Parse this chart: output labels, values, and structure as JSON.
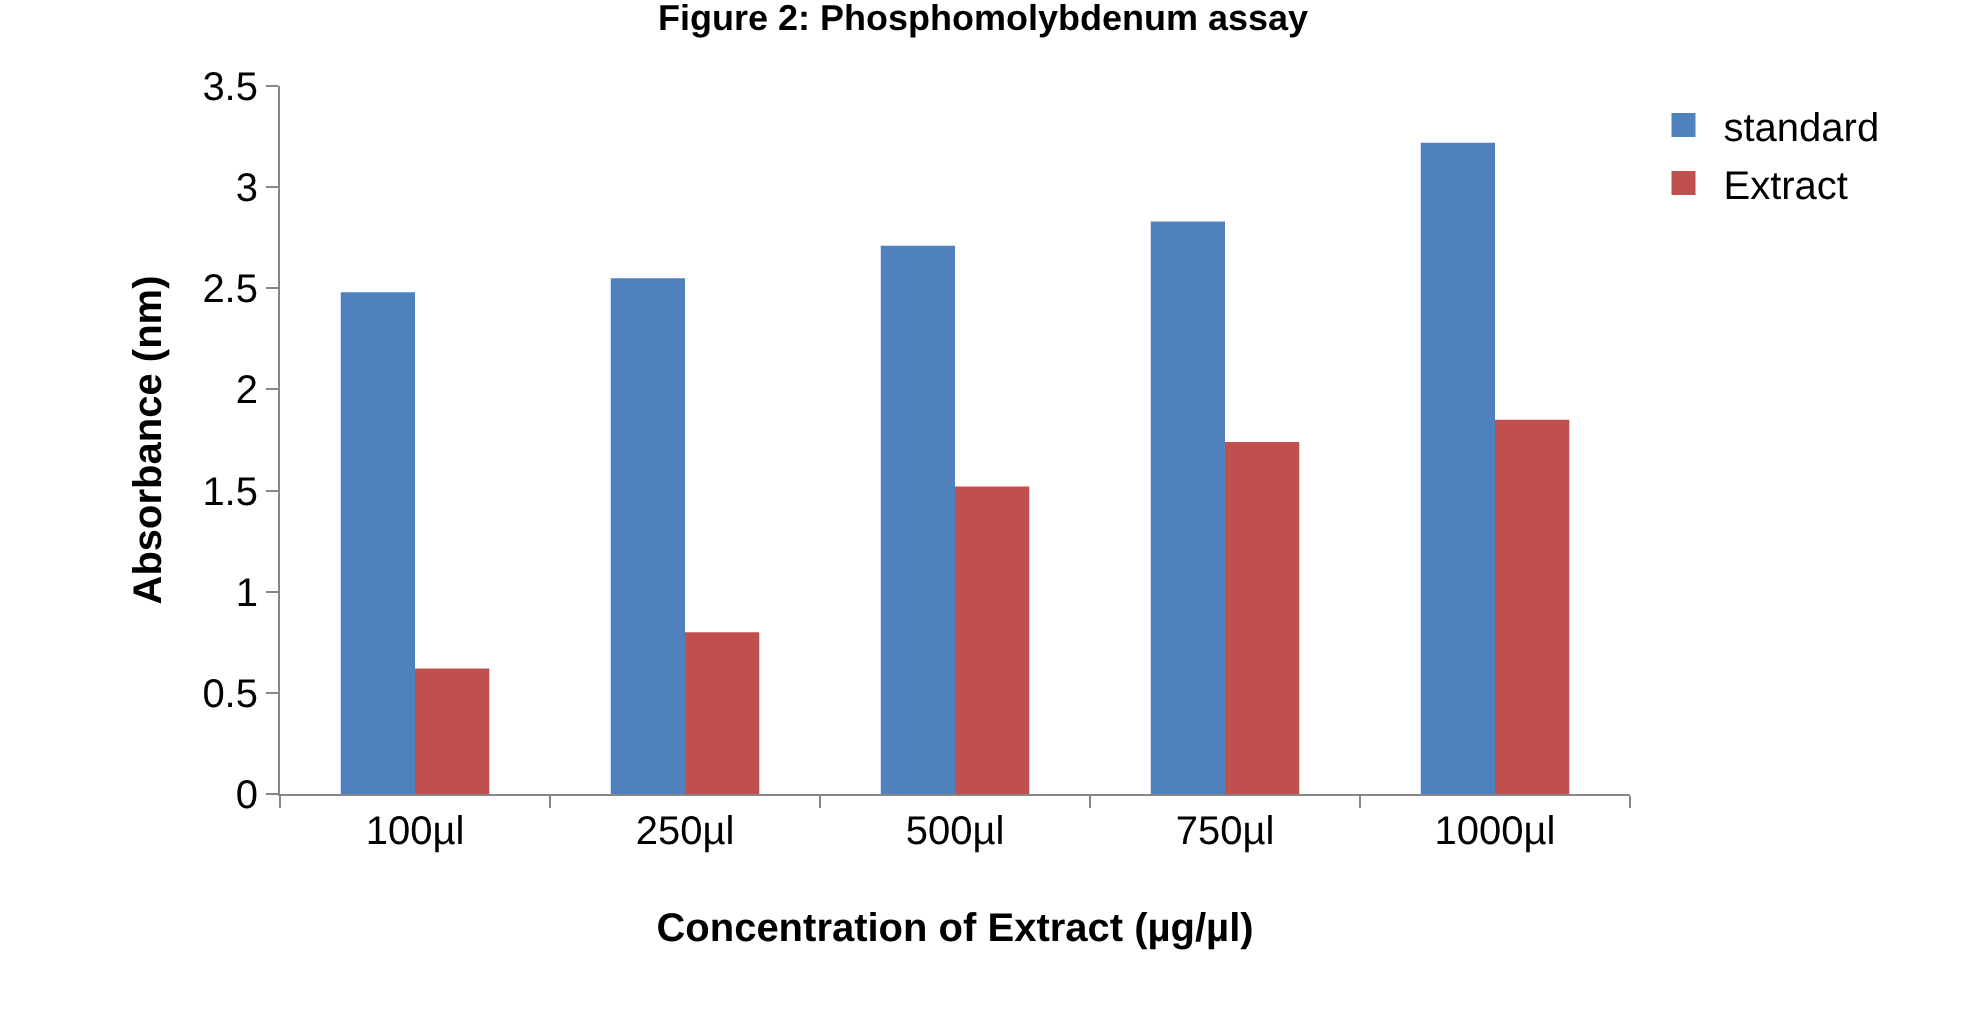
{
  "chart_data": {
    "type": "bar",
    "title": "Figure 2: Phosphomolybdenum assay",
    "xlabel": "Concentration of Extract (µg/µl)",
    "ylabel": "Absorbance (nm)",
    "categories": [
      "100µl",
      "250µl",
      "500µl",
      "750µl",
      "1000µl"
    ],
    "series": [
      {
        "name": "standard",
        "color": "#4f81bd",
        "values": [
          2.48,
          2.55,
          2.71,
          2.83,
          3.22
        ]
      },
      {
        "name": "Extract",
        "color": "#c0504d",
        "values": [
          0.62,
          0.8,
          1.52,
          1.74,
          1.85
        ]
      }
    ],
    "ylim": [
      0,
      3.5
    ],
    "yticks": [
      0,
      0.5,
      1,
      1.5,
      2,
      2.5,
      3,
      3.5
    ],
    "grid": false,
    "legend": "top right"
  }
}
